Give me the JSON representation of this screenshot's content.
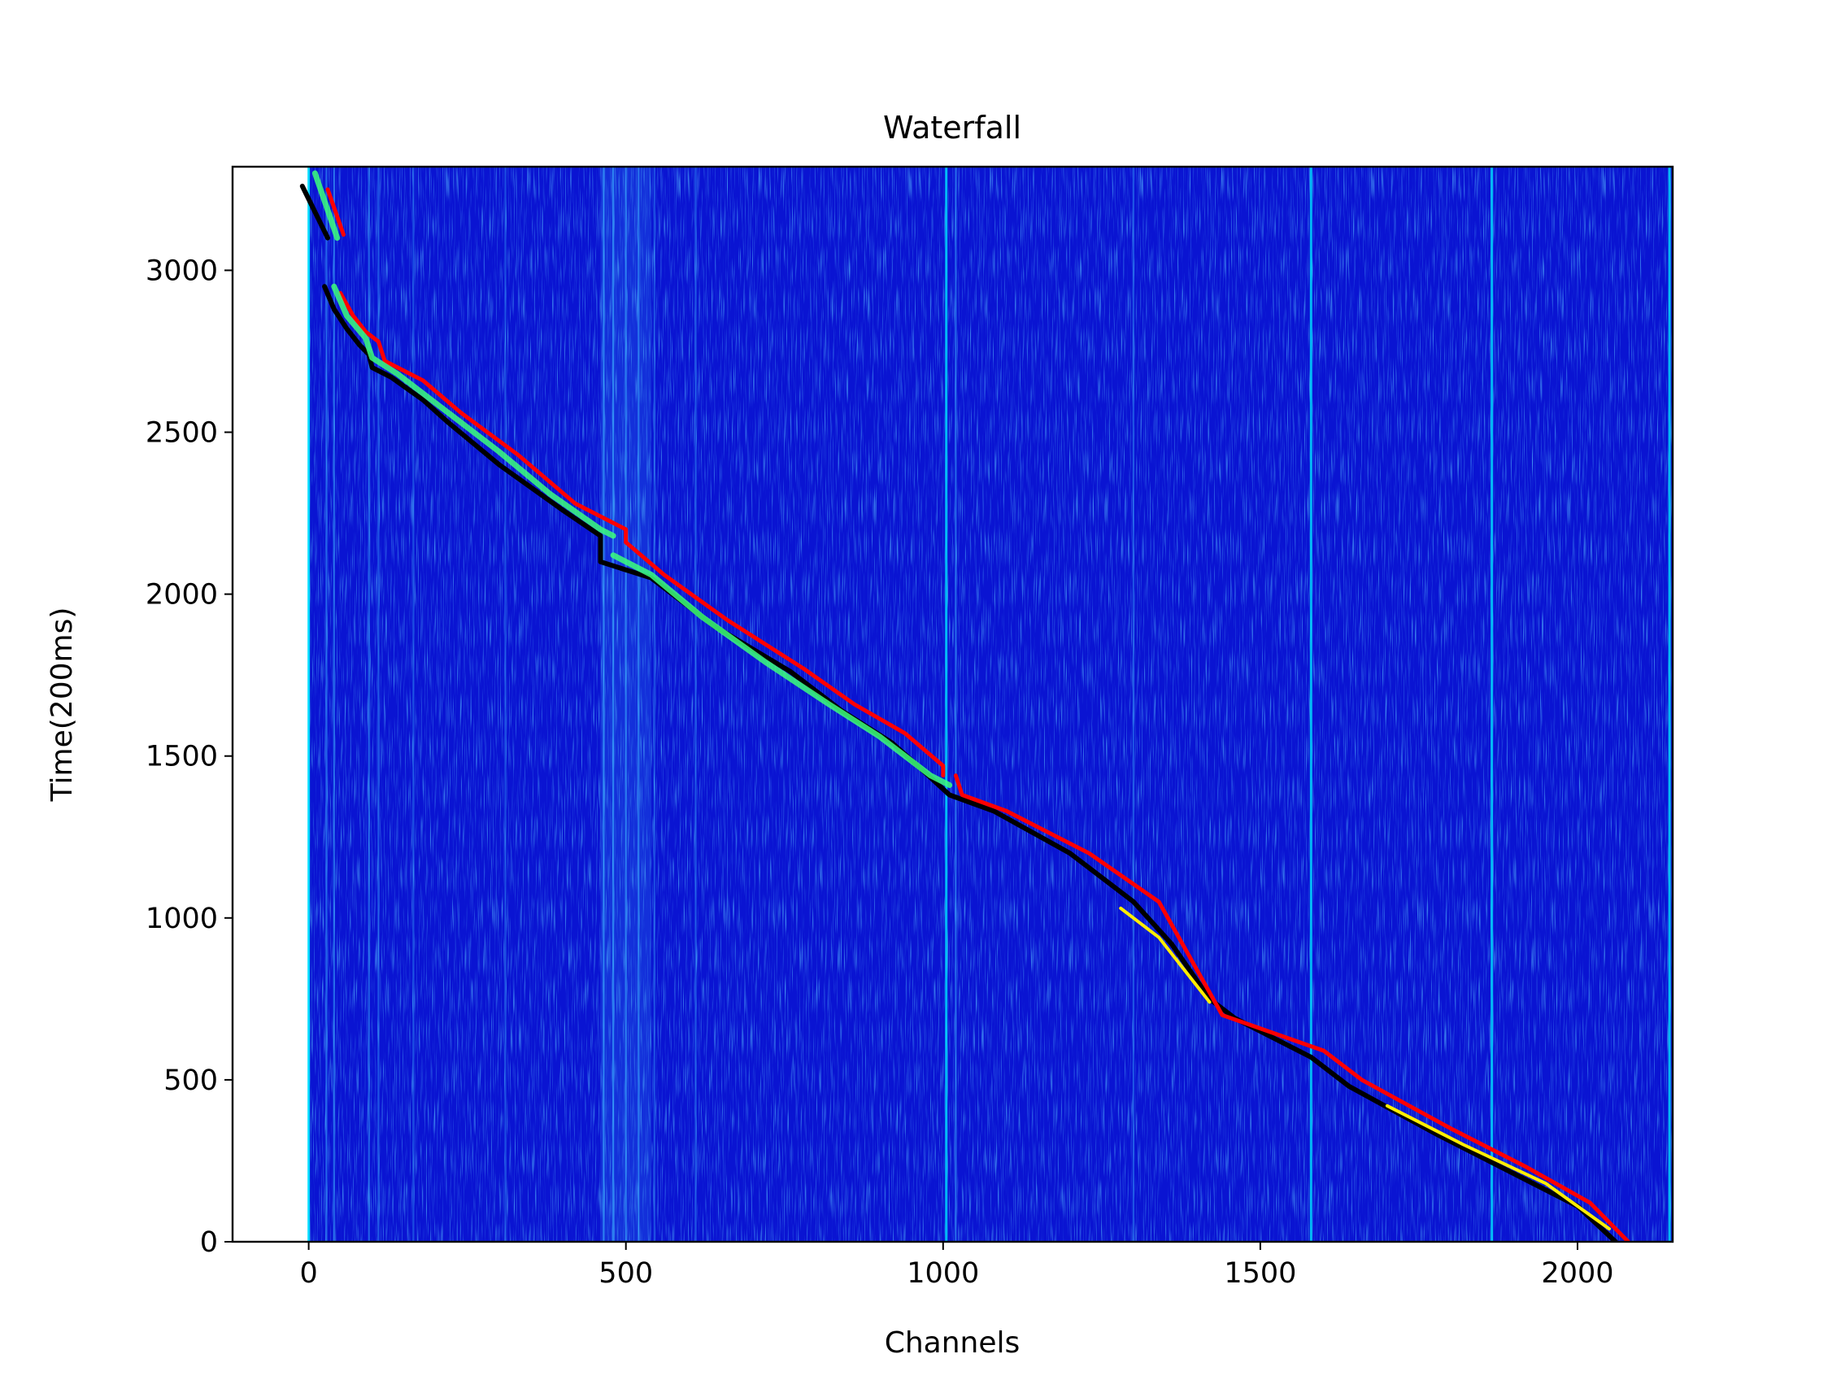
{
  "chart_data": {
    "type": "heatmap",
    "title": "Waterfall",
    "xlabel": "Channels",
    "ylabel": "Time(200ms)",
    "xlim": [
      -120,
      2150
    ],
    "ylim": [
      0,
      3320
    ],
    "data_extent": {
      "x": [
        0,
        2150
      ],
      "y": [
        0,
        3320
      ]
    },
    "x_ticks": [
      0,
      500,
      1000,
      1500,
      2000
    ],
    "y_ticks": [
      0,
      500,
      1000,
      1500,
      2000,
      2500,
      3000
    ],
    "colormap": "jet",
    "colors": {
      "background": "#0a14d2",
      "streak_cyan": "#00e0ff",
      "streak_light": "#3cb4ff",
      "track_black": "#000000",
      "track_red": "#ff0000",
      "track_green": "#3cff7a",
      "track_yellow": "#ffee00"
    },
    "vertical_streaks": [
      {
        "x": 0,
        "intensity": 0.9
      },
      {
        "x": 28,
        "intensity": 0.5
      },
      {
        "x": 40,
        "intensity": 0.5
      },
      {
        "x": 95,
        "intensity": 0.45
      },
      {
        "x": 110,
        "intensity": 0.4
      },
      {
        "x": 165,
        "intensity": 0.35
      },
      {
        "x": 310,
        "intensity": 0.35
      },
      {
        "x": 465,
        "intensity": 0.6
      },
      {
        "x": 480,
        "intensity": 0.6
      },
      {
        "x": 500,
        "intensity": 0.55
      },
      {
        "x": 520,
        "intensity": 0.5
      },
      {
        "x": 545,
        "intensity": 0.35
      },
      {
        "x": 610,
        "intensity": 0.4
      },
      {
        "x": 1005,
        "intensity": 0.8
      },
      {
        "x": 1020,
        "intensity": 0.5
      },
      {
        "x": 1300,
        "intensity": 0.4
      },
      {
        "x": 1580,
        "intensity": 0.8
      },
      {
        "x": 1865,
        "intensity": 0.8
      },
      {
        "x": 2145,
        "intensity": 0.8
      }
    ],
    "wide_bands": [
      {
        "x_start": 460,
        "x_end": 540,
        "intensity": 0.35
      }
    ],
    "series": [
      {
        "type": "line",
        "color": "#000000",
        "segments": [
          {
            "x": [
              -10,
              30
            ],
            "y": [
              3260,
              3100
            ]
          },
          {
            "x": [
              25,
              40,
              60,
              80,
              95,
              100,
              130,
              180,
              220,
              300,
              400,
              460,
              460
            ],
            "y": [
              2950,
              2880,
              2820,
              2770,
              2740,
              2700,
              2670,
              2600,
              2530,
              2400,
              2260,
              2180,
              2100
            ]
          },
          {
            "x": [
              460,
              540,
              640,
              760,
              840,
              920,
              960,
              1010,
              1080,
              1200,
              1300,
              1360,
              1420,
              1460,
              1580,
              1640,
              1780,
              1900,
              2000,
              2060
            ],
            "y": [
              2100,
              2050,
              1900,
              1760,
              1640,
              1540,
              1470,
              1380,
              1330,
              1200,
              1050,
              920,
              750,
              690,
              570,
              480,
              330,
              210,
              110,
              0
            ]
          }
        ]
      },
      {
        "type": "line",
        "color": "#ff0000",
        "segments": [
          {
            "x": [
              30,
              55
            ],
            "y": [
              3250,
              3110
            ]
          },
          {
            "x": [
              50,
              70,
              90,
              110,
              120,
              180,
              240,
              330,
              420,
              500,
              500
            ],
            "y": [
              2930,
              2860,
              2810,
              2780,
              2720,
              2660,
              2560,
              2430,
              2280,
              2200,
              2160
            ]
          },
          {
            "x": [
              500,
              560,
              660,
              780,
              860,
              940,
              1000,
              1000
            ],
            "y": [
              2160,
              2060,
              1920,
              1770,
              1660,
              1570,
              1470,
              1440
            ]
          },
          {
            "x": [
              1020,
              1030,
              1100,
              1230,
              1340,
              1440,
              1600,
              1660,
              1800,
              1920,
              2020,
              2080
            ],
            "y": [
              1440,
              1380,
              1330,
              1200,
              1050,
              700,
              590,
              500,
              350,
              230,
              120,
              0
            ]
          }
        ]
      },
      {
        "type": "line",
        "color": "#3cff7a",
        "segments": [
          {
            "x": [
              10,
              45
            ],
            "y": [
              3300,
              3100
            ]
          },
          {
            "x": [
              40,
              60,
              90,
              100,
              140,
              220,
              300,
              380,
              460,
              480
            ],
            "y": [
              2950,
              2860,
              2790,
              2730,
              2680,
              2560,
              2440,
              2310,
              2200,
              2180
            ]
          },
          {
            "x": [
              480,
              540,
              620,
              720,
              820,
              900,
              980,
              1010
            ],
            "y": [
              2120,
              2060,
              1930,
              1790,
              1660,
              1560,
              1440,
              1410
            ]
          }
        ]
      },
      {
        "type": "line",
        "color": "#ffee00",
        "segments": [
          {
            "x": [
              1280,
              1340,
              1400,
              1420
            ],
            "y": [
              1030,
              940,
              790,
              740
            ]
          },
          {
            "x": [
              1700,
              1820,
              1950,
              2050
            ],
            "y": [
              420,
              300,
              180,
              40
            ]
          }
        ]
      }
    ]
  }
}
